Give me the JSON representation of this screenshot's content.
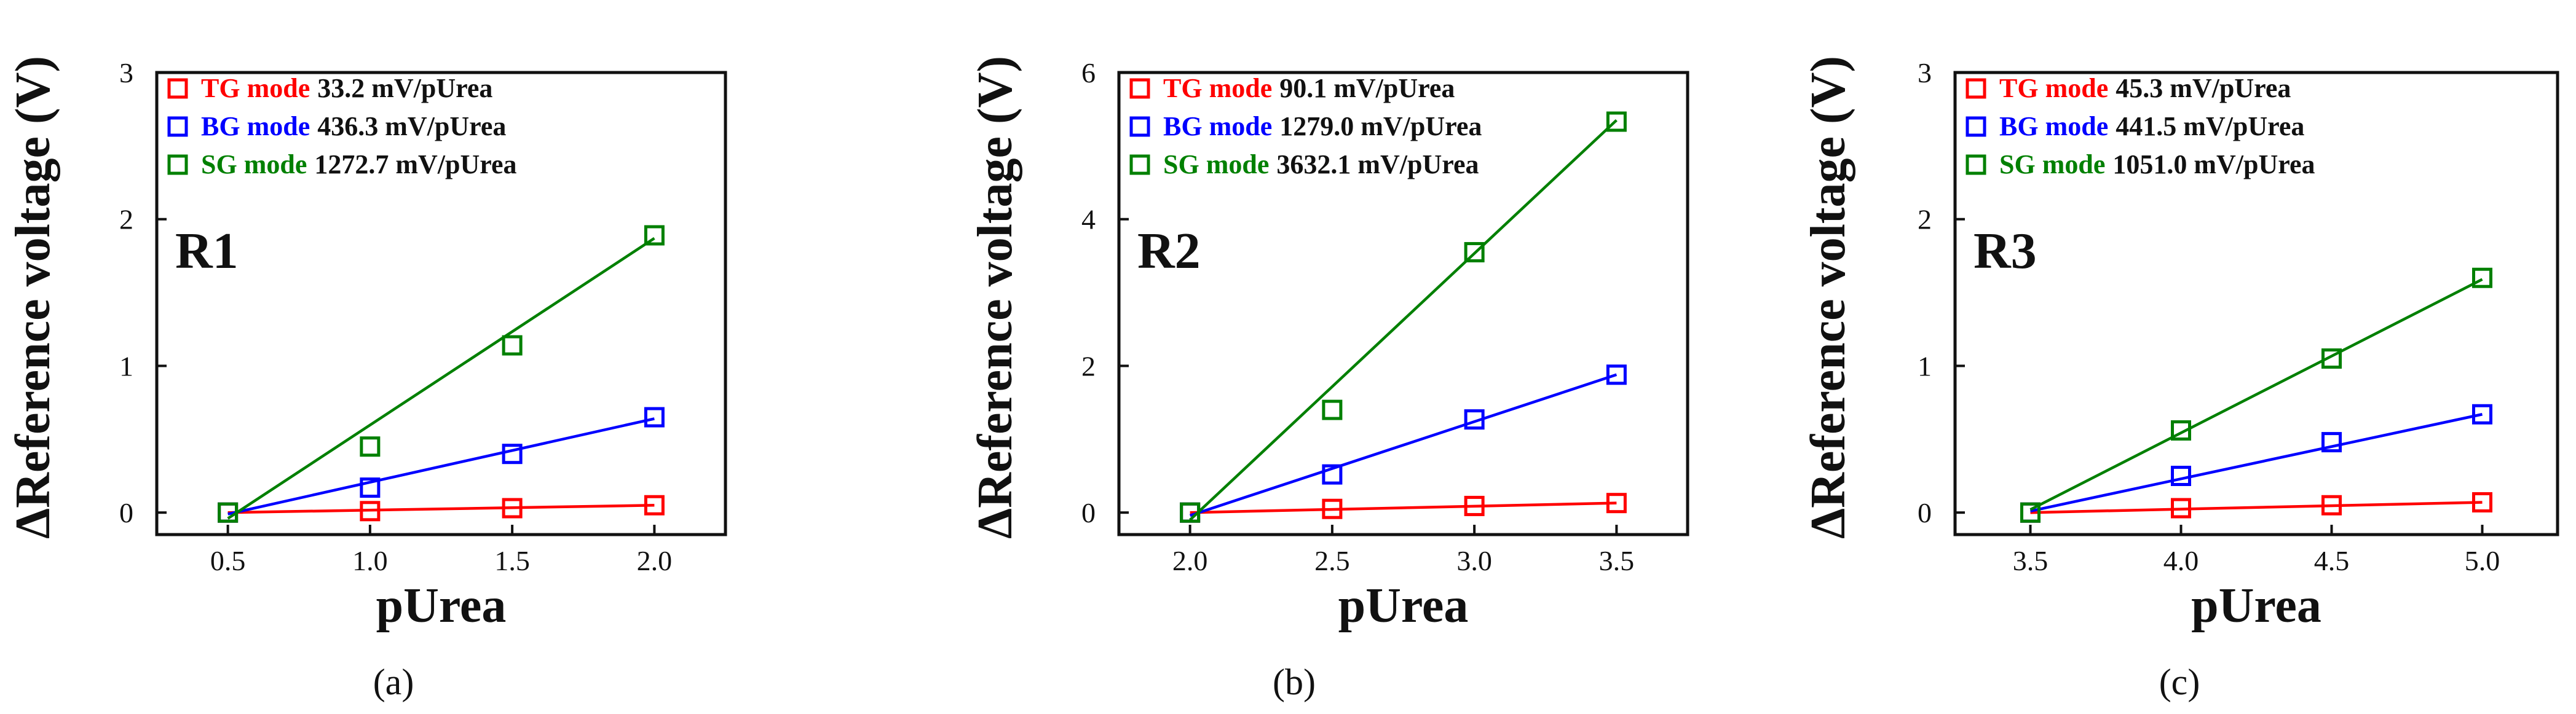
{
  "chart_data": [
    {
      "type": "scatter",
      "panel_label": "R1",
      "caption": "(a)",
      "xlabel": "pUrea",
      "ylabel": "ΔReference voltage (V)",
      "xlim": [
        0.25,
        2.25
      ],
      "ylim": [
        -0.15,
        3.0
      ],
      "xticks": [
        0.5,
        1.0,
        1.5,
        2.0
      ],
      "xtick_labels": [
        "0.5",
        "1.0",
        "1.5",
        "2.0"
      ],
      "yticks": [
        0,
        1,
        2,
        3
      ],
      "ytick_labels": [
        "0",
        "1",
        "2",
        "3"
      ],
      "series": [
        {
          "name": "TG mode",
          "sensitivity": "33.2 mV/pUrea",
          "color": "#ff0000",
          "x": [
            0.5,
            1.0,
            1.5,
            2.0
          ],
          "values": [
            0,
            0.01,
            0.03,
            0.05
          ],
          "fit": {
            "x": [
              0.5,
              2.0
            ],
            "y": [
              0.0,
              0.05
            ]
          }
        },
        {
          "name": "BG mode",
          "sensitivity": "436.3 mV/pUrea",
          "color": "#0000ff",
          "x": [
            0.5,
            1.0,
            1.5,
            2.0
          ],
          "values": [
            0,
            0.17,
            0.4,
            0.65
          ],
          "fit": {
            "x": [
              0.5,
              2.0
            ],
            "y": [
              -0.01,
              0.64
            ]
          }
        },
        {
          "name": "SG mode",
          "sensitivity": "1272.7 mV/pUrea",
          "color": "#008000",
          "x": [
            0.5,
            1.0,
            1.5,
            2.0
          ],
          "values": [
            0,
            0.45,
            1.14,
            1.89
          ],
          "fit": {
            "x": [
              0.5,
              2.0
            ],
            "y": [
              -0.04,
              1.87
            ]
          }
        }
      ]
    },
    {
      "type": "scatter",
      "panel_label": "R2",
      "caption": "(b)",
      "xlabel": "pUrea",
      "ylabel": "ΔReference voltage (V)",
      "xlim": [
        1.75,
        3.75
      ],
      "ylim": [
        -0.3,
        6.0
      ],
      "xticks": [
        2.0,
        2.5,
        3.0,
        3.5
      ],
      "xtick_labels": [
        "2.0",
        "2.5",
        "3.0",
        "3.5"
      ],
      "yticks": [
        0,
        2,
        4,
        6
      ],
      "ytick_labels": [
        "0",
        "2",
        "4",
        "6"
      ],
      "series": [
        {
          "name": "TG mode",
          "sensitivity": "90.1 mV/pUrea",
          "color": "#ff0000",
          "x": [
            2.0,
            2.5,
            3.0,
            3.5
          ],
          "values": [
            0,
            0.05,
            0.09,
            0.13
          ],
          "fit": {
            "x": [
              2.0,
              3.5
            ],
            "y": [
              0.0,
              0.13
            ]
          }
        },
        {
          "name": "BG mode",
          "sensitivity": "1279.0 mV/pUrea",
          "color": "#0000ff",
          "x": [
            2.0,
            2.5,
            3.0,
            3.5
          ],
          "values": [
            0,
            0.52,
            1.27,
            1.88
          ],
          "fit": {
            "x": [
              2.0,
              3.5
            ],
            "y": [
              -0.04,
              1.88
            ]
          }
        },
        {
          "name": "SG mode",
          "sensitivity": "3632.1 mV/pUrea",
          "color": "#008000",
          "x": [
            2.0,
            2.5,
            3.0,
            3.5
          ],
          "values": [
            0,
            1.4,
            3.55,
            5.33
          ],
          "fit": {
            "x": [
              2.0,
              3.5
            ],
            "y": [
              -0.1,
              5.35
            ]
          }
        }
      ]
    },
    {
      "type": "scatter",
      "panel_label": "R3",
      "caption": "(c)",
      "xlabel": "pUrea",
      "ylabel": "ΔReference voltage (V)",
      "xlim": [
        3.25,
        5.25
      ],
      "ylim": [
        -0.15,
        3.0
      ],
      "xticks": [
        3.5,
        4.0,
        4.5,
        5.0
      ],
      "xtick_labels": [
        "3.5",
        "4.0",
        "4.5",
        "5.0"
      ],
      "yticks": [
        0,
        1,
        2,
        3
      ],
      "ytick_labels": [
        "0",
        "1",
        "2",
        "3"
      ],
      "series": [
        {
          "name": "TG mode",
          "sensitivity": "45.3 mV/pUrea",
          "color": "#ff0000",
          "x": [
            3.5,
            4.0,
            4.5,
            5.0
          ],
          "values": [
            0,
            0.03,
            0.05,
            0.07
          ],
          "fit": {
            "x": [
              3.5,
              5.0
            ],
            "y": [
              0.0,
              0.07
            ]
          }
        },
        {
          "name": "BG mode",
          "sensitivity": "441.5 mV/pUrea",
          "color": "#0000ff",
          "x": [
            3.5,
            4.0,
            4.5,
            5.0
          ],
          "values": [
            0,
            0.25,
            0.48,
            0.67
          ],
          "fit": {
            "x": [
              3.5,
              5.0
            ],
            "y": [
              0.01,
              0.67
            ]
          }
        },
        {
          "name": "SG mode",
          "sensitivity": "1051.0 mV/pUrea",
          "color": "#008000",
          "x": [
            3.5,
            4.0,
            4.5,
            5.0
          ],
          "values": [
            0,
            0.56,
            1.05,
            1.6
          ],
          "fit": {
            "x": [
              3.5,
              5.0
            ],
            "y": [
              0.02,
              1.59
            ]
          }
        }
      ]
    }
  ]
}
